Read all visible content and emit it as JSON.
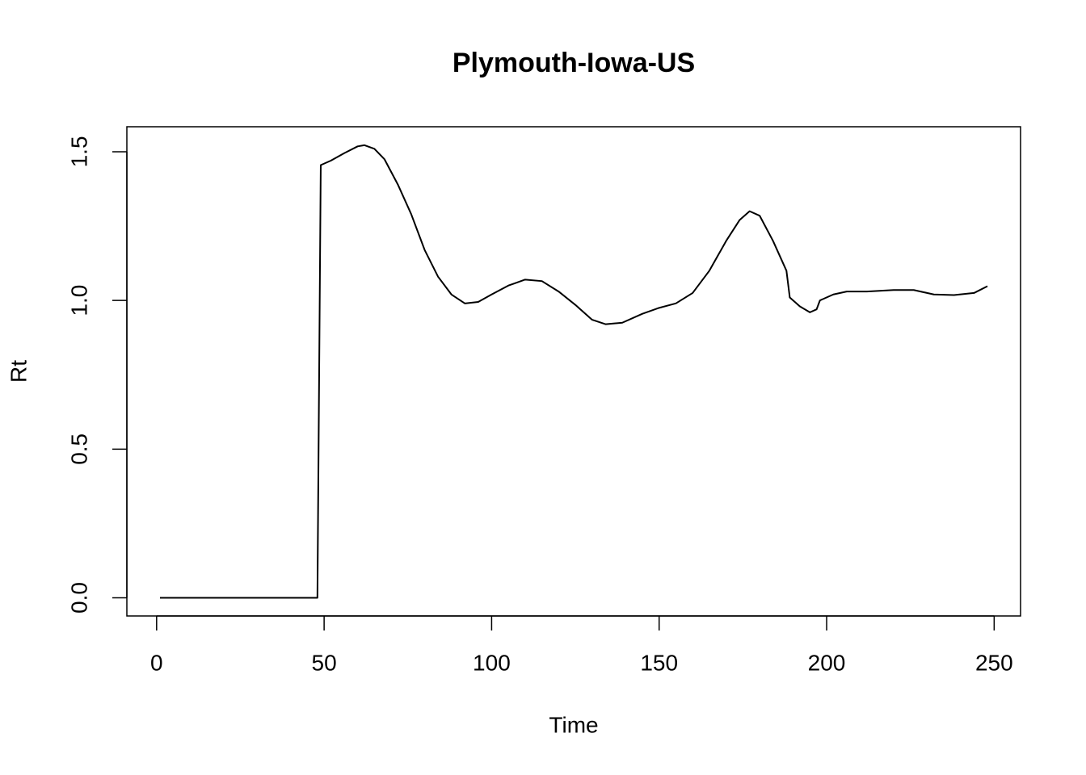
{
  "chart_data": {
    "type": "line",
    "title": "Plymouth-Iowa-US",
    "x_label": "Time",
    "y_label": "Rt",
    "x": [
      1,
      48,
      49,
      52,
      56,
      60,
      62,
      65,
      68,
      72,
      76,
      80,
      84,
      88,
      92,
      96,
      100,
      105,
      110,
      115,
      120,
      125,
      130,
      134,
      139,
      145,
      150,
      155,
      160,
      165,
      170,
      174,
      177,
      180,
      184,
      188,
      189,
      192,
      195,
      197,
      198,
      202,
      206,
      212,
      220,
      226,
      232,
      238,
      244,
      248
    ],
    "y": [
      0,
      0,
      1.455,
      1.47,
      1.495,
      1.518,
      1.522,
      1.51,
      1.475,
      1.39,
      1.29,
      1.17,
      1.08,
      1.02,
      0.99,
      0.995,
      1.02,
      1.05,
      1.07,
      1.065,
      1.03,
      0.985,
      0.935,
      0.92,
      0.925,
      0.955,
      0.975,
      0.99,
      1.025,
      1.1,
      1.2,
      1.27,
      1.3,
      1.285,
      1.2,
      1.1,
      1.01,
      0.98,
      0.96,
      0.97,
      1.0,
      1.02,
      1.03,
      1.03,
      1.035,
      1.035,
      1.02,
      1.018,
      1.025,
      1.048
    ],
    "color": "#000000",
    "xlim": [
      -8.88,
      257.88
    ],
    "xticks": [
      0,
      50,
      100,
      150,
      200,
      250
    ],
    "ylim": [
      -0.061,
      1.584
    ],
    "yticks": [
      {
        "value": 0,
        "label": "0.0"
      },
      {
        "value": 0.5,
        "label": "0.5"
      },
      {
        "value": 1,
        "label": "1.0"
      },
      {
        "value": 1.5,
        "label": "1.5"
      }
    ]
  }
}
